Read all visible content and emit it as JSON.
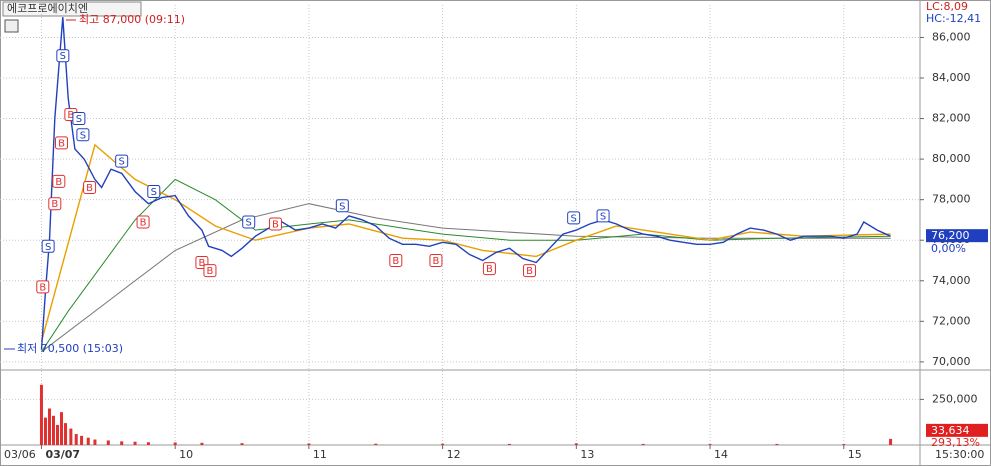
{
  "chart_data": {
    "type": "line",
    "title": "에코프로에이치엔",
    "lc": "LC:8,09",
    "hc": "HC:-12,41",
    "time_label": "15:30:00",
    "high_label": "최고 87,000 (09:11)",
    "low_label": "최저 70,500 (15:03)",
    "last_price": {
      "value": 76200,
      "label": "76,200"
    },
    "last_price_change": "0,00%",
    "xlim": [
      -0.31,
      6.57
    ],
    "ylim": [
      69600,
      87600
    ],
    "grid": true,
    "xticks": [
      {
        "value": -1,
        "label": "03/06"
      },
      {
        "value": 0,
        "label": "03/07"
      },
      {
        "value": 1,
        "label": "10"
      },
      {
        "value": 2,
        "label": "11"
      },
      {
        "value": 3,
        "label": "12"
      },
      {
        "value": 4,
        "label": "13"
      },
      {
        "value": 5,
        "label": "14"
      },
      {
        "value": 6,
        "label": "15"
      }
    ],
    "yticks": [
      {
        "value": 70000,
        "label": "70,000"
      },
      {
        "value": 72000,
        "label": "72,000"
      },
      {
        "value": 74000,
        "label": "74,000"
      },
      {
        "value": 76000,
        "label": "76,000"
      },
      {
        "value": 78000,
        "label": "78,000"
      },
      {
        "value": 80000,
        "label": "80,000"
      },
      {
        "value": 82000,
        "label": "82,000"
      },
      {
        "value": 84000,
        "label": "84,000"
      },
      {
        "value": 86000,
        "label": "86,000"
      }
    ],
    "series": [
      {
        "color": "#2040c0",
        "width": 1.4,
        "x": [
          0.0,
          0.03,
          0.06,
          0.1,
          0.16,
          0.2,
          0.25,
          0.32,
          0.4,
          0.45,
          0.52,
          0.6,
          0.7,
          0.8,
          0.9,
          1.0,
          1.1,
          1.2,
          1.25,
          1.35,
          1.42,
          1.5,
          1.6,
          1.7,
          1.8,
          1.9,
          2.0,
          2.1,
          2.2,
          2.3,
          2.4,
          2.5,
          2.6,
          2.7,
          2.8,
          2.9,
          3.0,
          3.1,
          3.2,
          3.3,
          3.4,
          3.5,
          3.6,
          3.7,
          3.8,
          3.9,
          4.0,
          4.1,
          4.2,
          4.3,
          4.4,
          4.5,
          4.6,
          4.7,
          4.8,
          4.9,
          5.0,
          5.1,
          5.2,
          5.3,
          5.4,
          5.5,
          5.6,
          5.7,
          5.8,
          5.9,
          6.0,
          6.1,
          6.15,
          6.25,
          6.35
        ],
        "values": [
          70600,
          73500,
          76000,
          82000,
          87000,
          83000,
          80500,
          80000,
          79000,
          78600,
          79500,
          79300,
          78400,
          77800,
          78100,
          78200,
          77200,
          76500,
          75700,
          75500,
          75200,
          75600,
          76200,
          76600,
          76900,
          76500,
          76600,
          76800,
          76600,
          77200,
          77000,
          76700,
          76100,
          75800,
          75800,
          75700,
          75900,
          75800,
          75300,
          75000,
          75400,
          75600,
          75100,
          74900,
          75600,
          76300,
          76500,
          76800,
          77000,
          76800,
          76500,
          76300,
          76200,
          76000,
          75900,
          75800,
          75800,
          75900,
          76300,
          76600,
          76500,
          76300,
          76000,
          76200,
          76200,
          76200,
          76100,
          76300,
          76900,
          76500,
          76200
        ]
      },
      {
        "color": "#e8a000",
        "width": 1.4,
        "x": [
          0.0,
          0.4,
          0.7,
          1.0,
          1.3,
          1.6,
          2.0,
          2.3,
          2.7,
          3.0,
          3.3,
          3.7,
          4.0,
          4.3,
          4.6,
          5.0,
          5.3,
          5.7,
          6.35
        ],
        "values": [
          71000,
          80700,
          79000,
          78000,
          76700,
          76000,
          76600,
          76800,
          76100,
          76000,
          75500,
          75200,
          76000,
          76700,
          76400,
          76000,
          76400,
          76200,
          76300
        ]
      },
      {
        "color": "#2a8a2a",
        "width": 1,
        "x": [
          0.0,
          0.2,
          0.7,
          1.0,
          1.3,
          1.6,
          2.0,
          2.3,
          2.7,
          3.0,
          3.5,
          4.0,
          4.5,
          5.0,
          5.5,
          6.35
        ],
        "values": [
          70500,
          72500,
          77000,
          79000,
          78000,
          76500,
          76800,
          77000,
          76600,
          76300,
          76000,
          76000,
          76300,
          76000,
          76100,
          76200
        ]
      },
      {
        "color": "#777777",
        "width": 1,
        "x": [
          0.0,
          0.5,
          1.0,
          1.5,
          2.0,
          2.5,
          3.0,
          4.0,
          5.0,
          6.35
        ],
        "values": [
          70500,
          73000,
          75500,
          77000,
          77800,
          77100,
          76600,
          76200,
          76100,
          76100
        ]
      }
    ],
    "signals": [
      {
        "x": 0.01,
        "y": 73700,
        "label": "B",
        "color": "#e03030"
      },
      {
        "x": 0.05,
        "y": 75700,
        "label": "S",
        "color": "#2040c0"
      },
      {
        "x": 0.1,
        "y": 77800,
        "label": "B",
        "color": "#e03030"
      },
      {
        "x": 0.13,
        "y": 78900,
        "label": "B",
        "color": "#e03030"
      },
      {
        "x": 0.16,
        "y": 85100,
        "label": "S",
        "color": "#2040c0"
      },
      {
        "x": 0.15,
        "y": 80800,
        "label": "B",
        "color": "#e03030"
      },
      {
        "x": 0.22,
        "y": 82200,
        "label": "B",
        "color": "#e03030"
      },
      {
        "x": 0.28,
        "y": 82000,
        "label": "S",
        "color": "#2040c0"
      },
      {
        "x": 0.31,
        "y": 81200,
        "label": "S",
        "color": "#2040c0"
      },
      {
        "x": 0.36,
        "y": 78600,
        "label": "B",
        "color": "#e03030"
      },
      {
        "x": 0.6,
        "y": 79900,
        "label": "S",
        "color": "#2040c0"
      },
      {
        "x": 0.76,
        "y": 76900,
        "label": "B",
        "color": "#e03030"
      },
      {
        "x": 0.84,
        "y": 78400,
        "label": "S",
        "color": "#2040c0"
      },
      {
        "x": 1.2,
        "y": 74900,
        "label": "B",
        "color": "#e03030"
      },
      {
        "x": 1.26,
        "y": 74500,
        "label": "B",
        "color": "#e03030"
      },
      {
        "x": 1.55,
        "y": 76900,
        "label": "S",
        "color": "#2040c0"
      },
      {
        "x": 1.75,
        "y": 76800,
        "label": "B",
        "color": "#e03030"
      },
      {
        "x": 2.25,
        "y": 77700,
        "label": "S",
        "color": "#2040c0"
      },
      {
        "x": 2.65,
        "y": 75000,
        "label": "B",
        "color": "#e03030"
      },
      {
        "x": 2.95,
        "y": 75000,
        "label": "B",
        "color": "#e03030"
      },
      {
        "x": 3.35,
        "y": 74600,
        "label": "B",
        "color": "#e03030"
      },
      {
        "x": 3.65,
        "y": 74500,
        "label": "B",
        "color": "#e03030"
      },
      {
        "x": 3.98,
        "y": 77100,
        "label": "S",
        "color": "#2040c0"
      },
      {
        "x": 4.2,
        "y": 77200,
        "label": "S",
        "color": "#2040c0"
      }
    ],
    "volume": {
      "color": "#e03030",
      "ylim": [
        0,
        400000
      ],
      "yticks": [
        {
          "value": 250000,
          "label": "250,000"
        }
      ],
      "x": [
        0.0,
        0.03,
        0.06,
        0.09,
        0.12,
        0.15,
        0.18,
        0.22,
        0.26,
        0.3,
        0.35,
        0.4,
        0.5,
        0.6,
        0.7,
        0.8,
        1.0,
        1.2,
        1.5,
        2.0,
        2.5,
        3.0,
        3.5,
        4.0,
        4.5,
        5.0,
        5.5,
        6.0,
        6.35
      ],
      "values": [
        330000,
        150000,
        200000,
        160000,
        110000,
        180000,
        120000,
        90000,
        60000,
        50000,
        40000,
        30000,
        25000,
        20000,
        18000,
        15000,
        14000,
        12000,
        10000,
        8000,
        7000,
        7000,
        6000,
        9000,
        6000,
        5000,
        6000,
        5000,
        33634
      ],
      "last": {
        "value": 33634,
        "label": "33,634"
      },
      "last_change": "293,13%"
    }
  }
}
